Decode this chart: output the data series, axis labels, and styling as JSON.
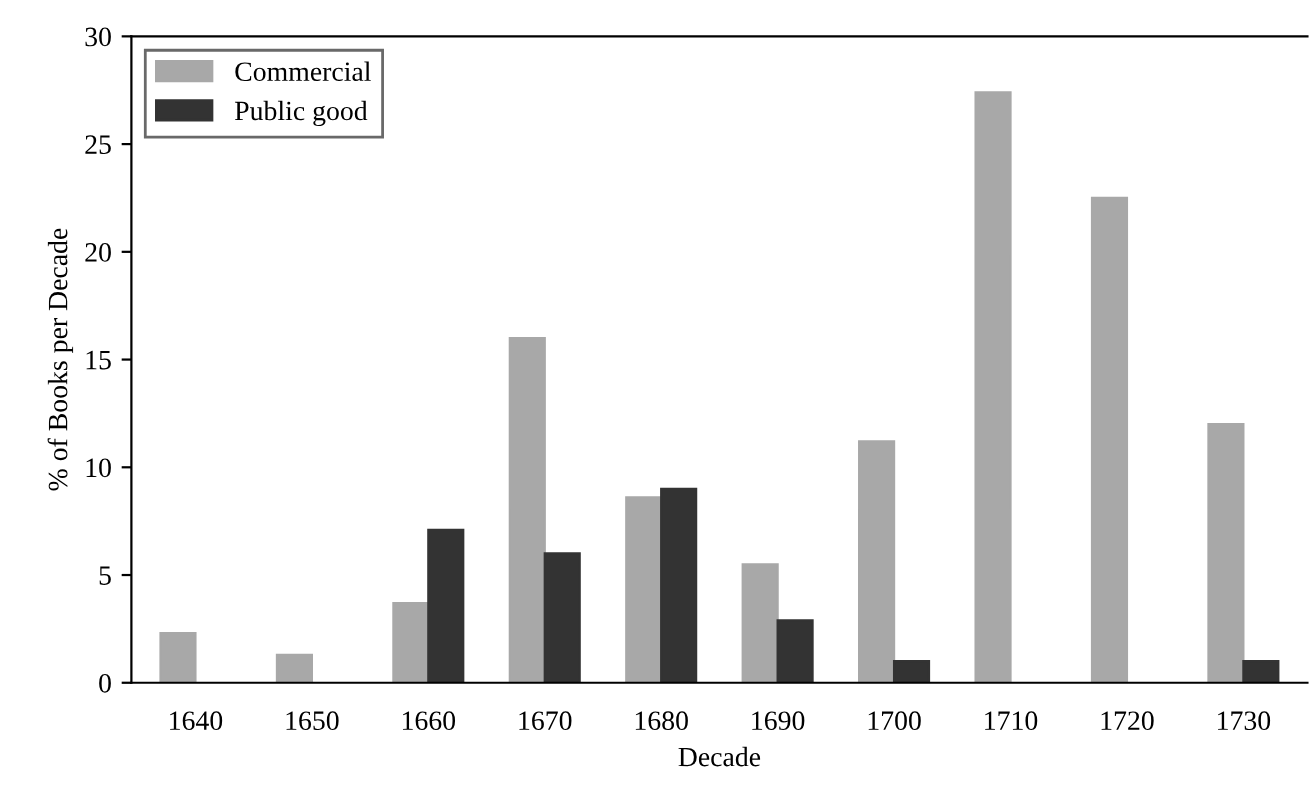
{
  "chart_data": {
    "type": "bar",
    "xlabel": "Decade",
    "ylabel": "% of Books per Decade",
    "categories": [
      "1640",
      "1650",
      "1660",
      "1670",
      "1680",
      "1690",
      "1700",
      "1710",
      "1720",
      "1730"
    ],
    "series": [
      {
        "name": "Commercial",
        "color": "#a8a8a8",
        "values": [
          2.3,
          1.3,
          3.7,
          16,
          8.6,
          5.5,
          11.2,
          27.4,
          22.5,
          12.0
        ]
      },
      {
        "name": "Public good",
        "color": "#333333",
        "values": [
          null,
          null,
          7.1,
          6.0,
          9.0,
          2.9,
          1.0,
          null,
          null,
          1.0
        ]
      }
    ],
    "ylim": [
      0,
      30
    ],
    "yticks": [
      0,
      5,
      10,
      15,
      20,
      25,
      30
    ],
    "grid": false,
    "legend": "top left"
  }
}
